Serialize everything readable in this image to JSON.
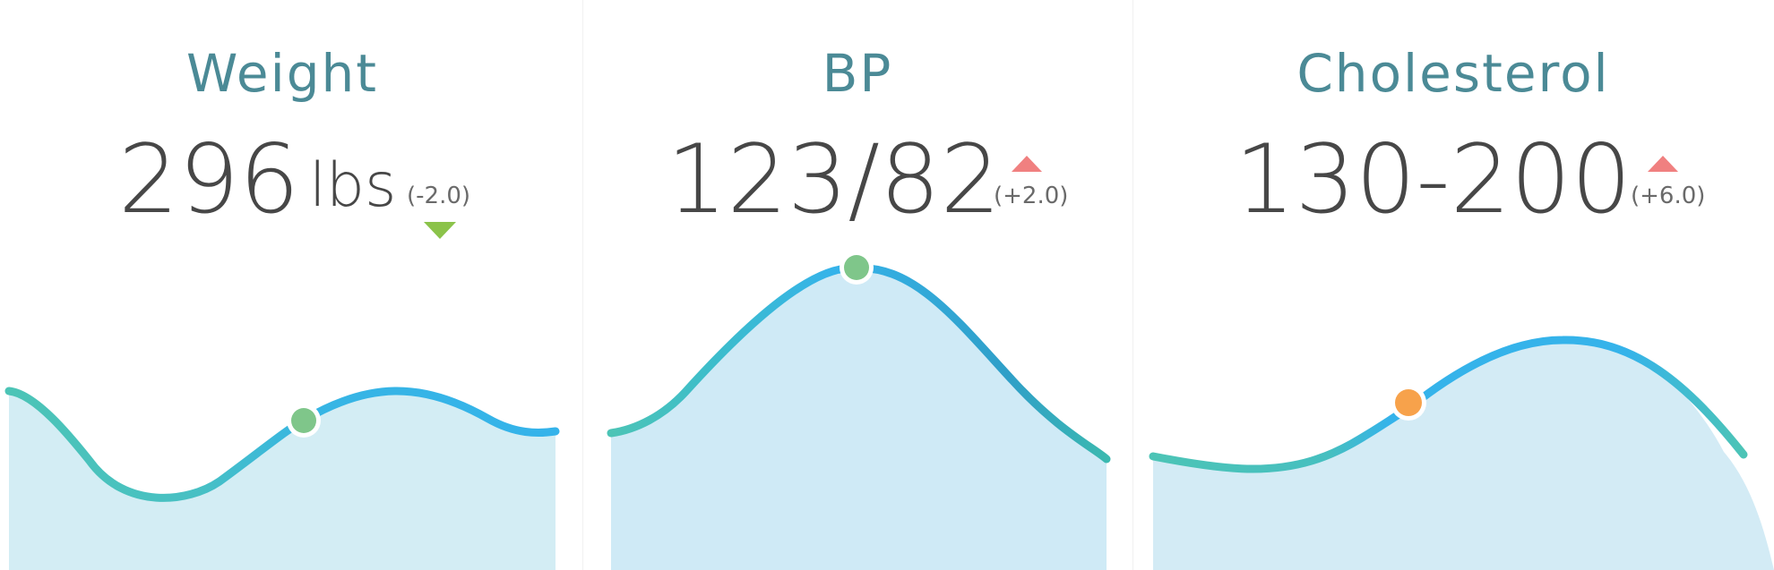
{
  "colors": {
    "title": "#4b8a96",
    "value": "#474747",
    "line_start": "#4cc4b6",
    "line_end": "#35b3ea",
    "fill": "#d0ecf6",
    "marker_good": "#7fc68a",
    "marker_warn": "#f7a24b",
    "trend_up": "#f08080",
    "trend_down": "#8bc34a"
  },
  "cards": [
    {
      "title": "Weight",
      "value": "296",
      "unit": "lbs",
      "delta": "(-2.0)",
      "trend": "down",
      "marker": "good"
    },
    {
      "title": "BP",
      "value": "123/82",
      "unit": "",
      "delta": "(+2.0)",
      "trend": "up",
      "marker": "good"
    },
    {
      "title": "Cholesterol",
      "value": "130-200",
      "unit": "",
      "delta": "(+6.0)",
      "trend": "up",
      "marker": "warn"
    }
  ]
}
